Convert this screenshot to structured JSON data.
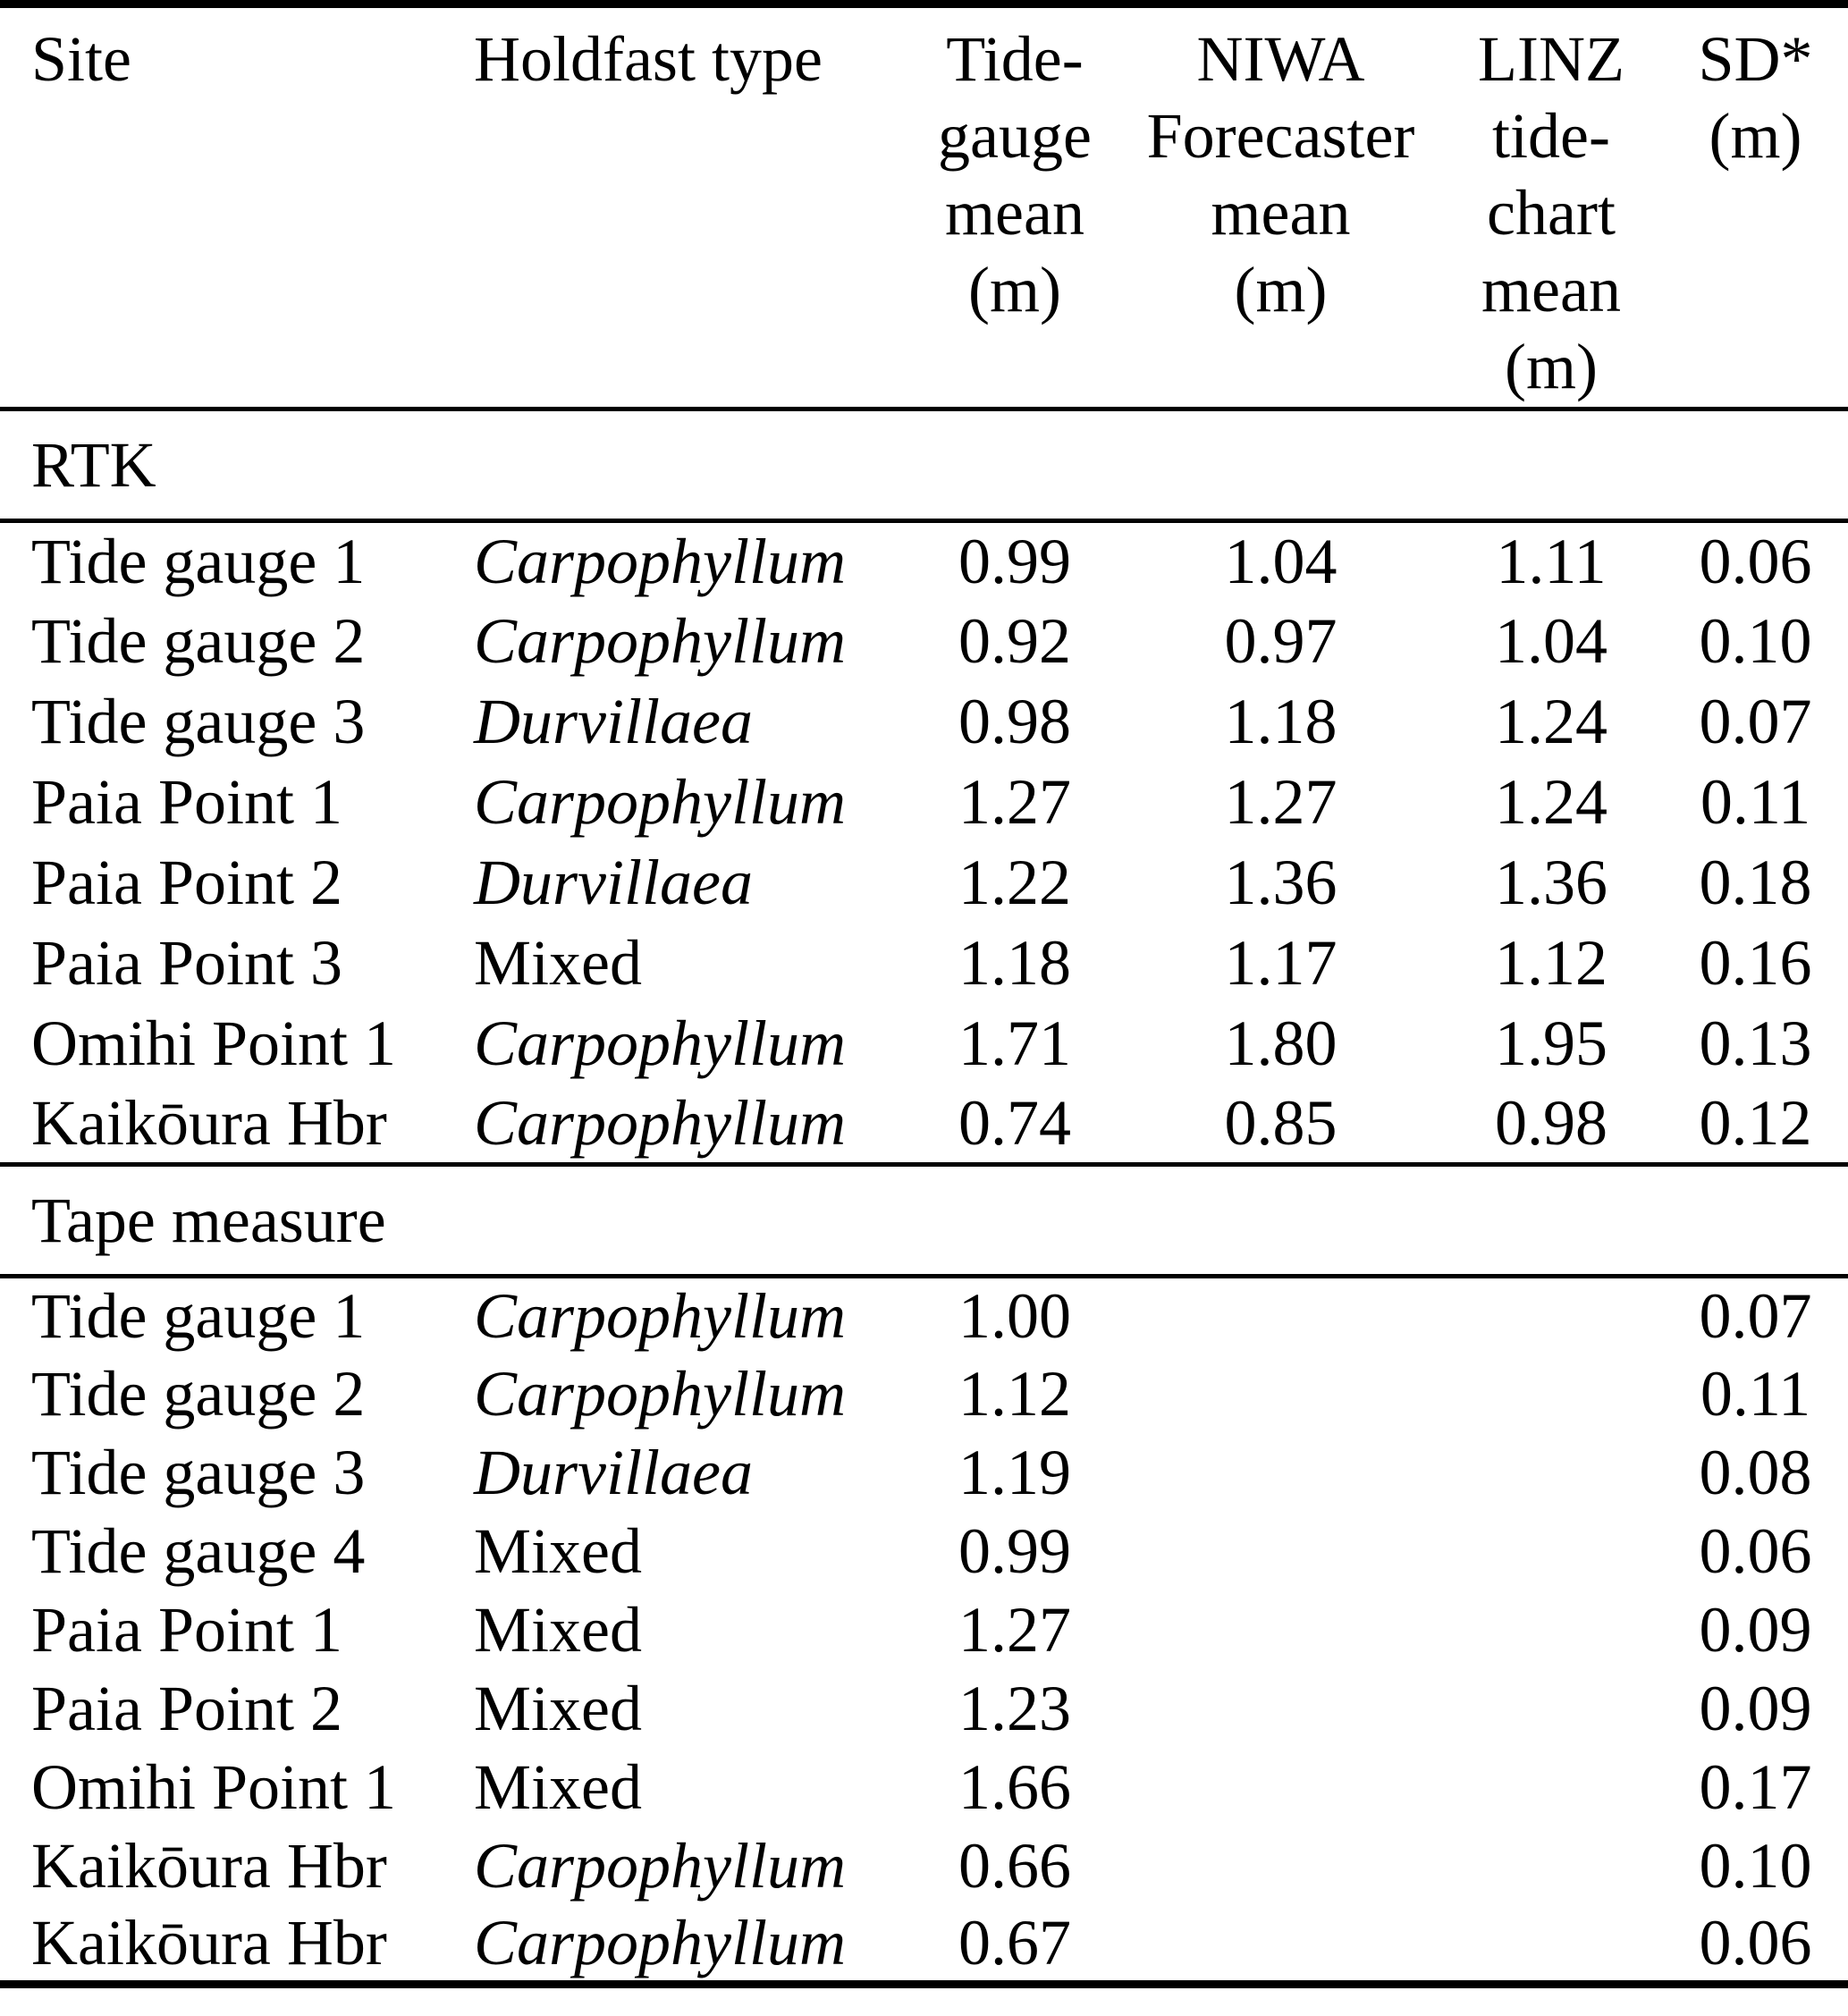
{
  "page": {
    "background_color": "#ffffff",
    "text_color": "#000000"
  },
  "table": {
    "headers": {
      "site": "Site",
      "holdfast": "Holdfast type",
      "tide_gauge": "Tide-\ngauge\nmean\n(m)",
      "niwa": "NIWA\nForecaster\nmean\n(m)",
      "linz": "LINZ\ntide-\nchart\nmean\n(m)",
      "sd": "SD*\n(m)"
    },
    "sections": [
      {
        "label": "RTK",
        "rows": [
          {
            "site": "Tide gauge 1",
            "holdfast": "Carpophyllum",
            "holdfast_italic": true,
            "tide_gauge_mean": "0.99",
            "niwa_mean": "1.04",
            "linz_mean": "1.11",
            "sd": "0.06"
          },
          {
            "site": "Tide gauge 2",
            "holdfast": "Carpophyllum",
            "holdfast_italic": true,
            "tide_gauge_mean": "0.92",
            "niwa_mean": "0.97",
            "linz_mean": "1.04",
            "sd": "0.10"
          },
          {
            "site": "Tide gauge 3",
            "holdfast": "Durvillaea",
            "holdfast_italic": true,
            "tide_gauge_mean": "0.98",
            "niwa_mean": "1.18",
            "linz_mean": "1.24",
            "sd": "0.07"
          },
          {
            "site": "Paia Point 1",
            "holdfast": "Carpophyllum",
            "holdfast_italic": true,
            "tide_gauge_mean": "1.27",
            "niwa_mean": "1.27",
            "linz_mean": "1.24",
            "sd": "0.11"
          },
          {
            "site": "Paia Point 2",
            "holdfast": "Durvillaea",
            "holdfast_italic": true,
            "tide_gauge_mean": "1.22",
            "niwa_mean": "1.36",
            "linz_mean": "1.36",
            "sd": "0.18"
          },
          {
            "site": "Paia Point 3",
            "holdfast": "Mixed",
            "holdfast_italic": false,
            "tide_gauge_mean": "1.18",
            "niwa_mean": "1.17",
            "linz_mean": "1.12",
            "sd": "0.16"
          },
          {
            "site": "Omihi Point 1",
            "holdfast": "Carpophyllum",
            "holdfast_italic": true,
            "tide_gauge_mean": "1.71",
            "niwa_mean": "1.80",
            "linz_mean": "1.95",
            "sd": "0.13"
          },
          {
            "site": "Kaikōura Hbr",
            "holdfast": "Carpophyllum",
            "holdfast_italic": true,
            "tide_gauge_mean": "0.74",
            "niwa_mean": "0.85",
            "linz_mean": "0.98",
            "sd": "0.12"
          }
        ]
      },
      {
        "label": "Tape measure",
        "rows": [
          {
            "site": "Tide gauge 1",
            "holdfast": "Carpophyllum",
            "holdfast_italic": true,
            "tide_gauge_mean": "1.00",
            "niwa_mean": "",
            "linz_mean": "",
            "sd": "0.07"
          },
          {
            "site": "Tide gauge 2",
            "holdfast": "Carpophyllum",
            "holdfast_italic": true,
            "tide_gauge_mean": "1.12",
            "niwa_mean": "",
            "linz_mean": "",
            "sd": "0.11"
          },
          {
            "site": "Tide gauge 3",
            "holdfast": "Durvillaea",
            "holdfast_italic": true,
            "tide_gauge_mean": "1.19",
            "niwa_mean": "",
            "linz_mean": "",
            "sd": "0.08"
          },
          {
            "site": "Tide gauge 4",
            "holdfast": "Mixed",
            "holdfast_italic": false,
            "tide_gauge_mean": "0.99",
            "niwa_mean": "",
            "linz_mean": "",
            "sd": "0.06"
          },
          {
            "site": "Paia Point 1",
            "holdfast": "Mixed",
            "holdfast_italic": false,
            "tide_gauge_mean": "1.27",
            "niwa_mean": "",
            "linz_mean": "",
            "sd": "0.09"
          },
          {
            "site": "Paia Point 2",
            "holdfast": "Mixed",
            "holdfast_italic": false,
            "tide_gauge_mean": "1.23",
            "niwa_mean": "",
            "linz_mean": "",
            "sd": "0.09"
          },
          {
            "site": "Omihi Point 1",
            "holdfast": "Mixed",
            "holdfast_italic": false,
            "tide_gauge_mean": "1.66",
            "niwa_mean": "",
            "linz_mean": "",
            "sd": "0.17"
          },
          {
            "site": "Kaikōura Hbr",
            "holdfast": "Carpophyllum",
            "holdfast_italic": true,
            "tide_gauge_mean": "0.66",
            "niwa_mean": "",
            "linz_mean": "",
            "sd": "0.10"
          },
          {
            "site": "Kaikōura Hbr",
            "holdfast": "Carpophyllum",
            "holdfast_italic": true,
            "tide_gauge_mean": "0.67",
            "niwa_mean": "",
            "linz_mean": "",
            "sd": "0.06"
          }
        ]
      }
    ]
  }
}
